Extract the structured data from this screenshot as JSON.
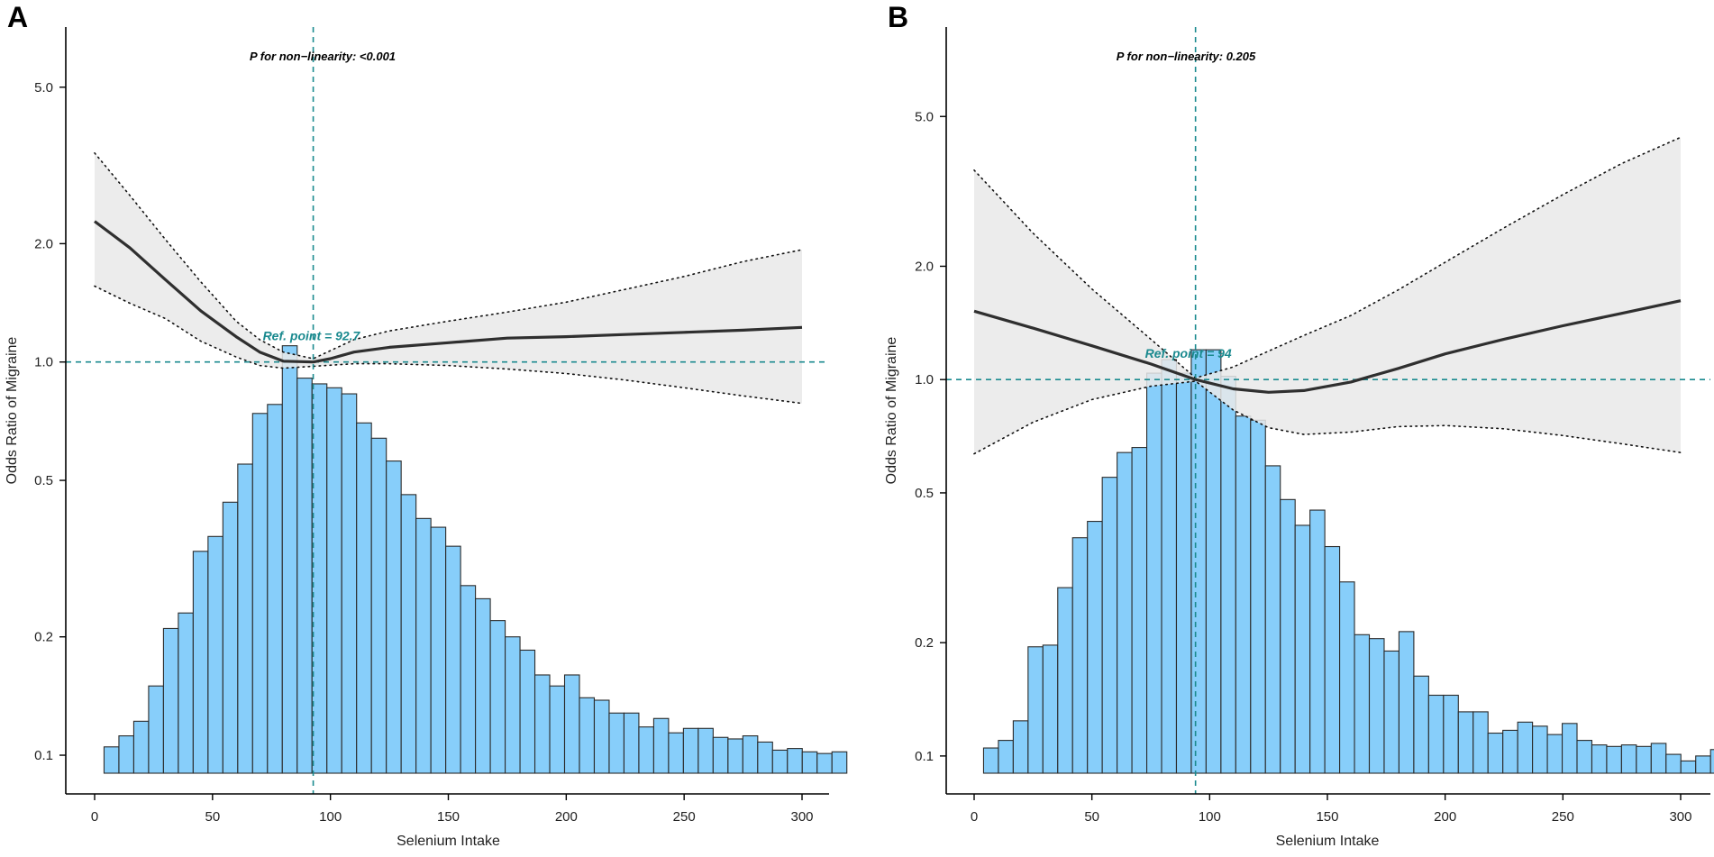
{
  "figure": {
    "panel_labels": [
      "A",
      "B"
    ]
  },
  "chart_data": [
    {
      "panel": "A",
      "type": "line",
      "overlay_type": "bar",
      "title": "",
      "xlabel": "Selenium Intake",
      "ylabel": "Odds Ratio of Migraine",
      "xlim": [
        0,
        300
      ],
      "xticks": [
        0,
        50,
        100,
        150,
        200,
        250,
        300
      ],
      "ylim_log": [
        0.09,
        7.0
      ],
      "yticks": [
        0.1,
        0.2,
        0.5,
        1.0,
        2.0,
        5.0
      ],
      "ytick_labels": [
        "0.1",
        "0.2",
        "0.5",
        "1.0",
        "2.0",
        "5.0"
      ],
      "y_scale": "log",
      "pnl_annotation": "P for non−linearity: <0.001",
      "ref_point": 92.7,
      "ref_label": "Ref. point = 92.7",
      "ref_line_y": 1.0,
      "accent_color": "#1b8a8f",
      "bar_color": "#87CEFA",
      "histogram": {
        "bin_edges_start": 4,
        "bin_width": 6.3,
        "heights": [
          0.105,
          0.112,
          0.122,
          0.15,
          0.21,
          0.23,
          0.33,
          0.36,
          0.44,
          0.55,
          0.74,
          0.78,
          1.1,
          0.91,
          0.88,
          0.86,
          0.83,
          0.7,
          0.64,
          0.56,
          0.46,
          0.4,
          0.38,
          0.34,
          0.27,
          0.25,
          0.22,
          0.2,
          0.185,
          0.16,
          0.15,
          0.16,
          0.14,
          0.138,
          0.128,
          0.128,
          0.118,
          0.124,
          0.114,
          0.117,
          0.117,
          0.111,
          0.11,
          0.112,
          0.108,
          0.103,
          0.104,
          0.102,
          0.101,
          0.102
        ]
      },
      "curve": {
        "x": [
          0,
          15,
          30,
          45,
          60,
          70,
          80,
          92.7,
          100,
          110,
          125,
          150,
          175,
          200,
          225,
          250,
          275,
          300
        ],
        "or": [
          2.28,
          1.95,
          1.62,
          1.35,
          1.16,
          1.06,
          1.005,
          1.0,
          1.02,
          1.06,
          1.09,
          1.12,
          1.15,
          1.16,
          1.175,
          1.19,
          1.205,
          1.225
        ]
      },
      "ci_upper": {
        "x": [
          0,
          15,
          30,
          45,
          60,
          70,
          80,
          92.7,
          110,
          125,
          150,
          175,
          200,
          225,
          250,
          275,
          300
        ],
        "or": [
          3.4,
          2.65,
          2.05,
          1.6,
          1.27,
          1.14,
          1.06,
          1.02,
          1.14,
          1.2,
          1.27,
          1.34,
          1.42,
          1.53,
          1.65,
          1.8,
          1.93
        ]
      },
      "ci_lower": {
        "x": [
          0,
          15,
          30,
          45,
          60,
          70,
          80,
          92.7,
          110,
          125,
          150,
          175,
          200,
          225,
          250,
          275,
          300
        ],
        "or": [
          1.56,
          1.41,
          1.29,
          1.13,
          1.03,
          0.98,
          0.965,
          0.975,
          0.99,
          0.99,
          0.98,
          0.96,
          0.935,
          0.9,
          0.86,
          0.82,
          0.785
        ]
      }
    },
    {
      "panel": "B",
      "type": "line",
      "overlay_type": "bar",
      "title": "",
      "xlabel": "Selenium Intake",
      "ylabel": "Odds Ratio of Migraine",
      "xlim": [
        0,
        300
      ],
      "xticks": [
        0,
        50,
        100,
        150,
        200,
        250,
        300
      ],
      "ylim_log": [
        0.09,
        8.5
      ],
      "yticks": [
        0.1,
        0.2,
        0.5,
        1.0,
        2.0,
        5.0
      ],
      "ytick_labels": [
        "0.1",
        "0.2",
        "0.5",
        "1.0",
        "2.0",
        "5.0"
      ],
      "y_scale": "log",
      "pnl_annotation": "P for non−linearity: 0.205",
      "ref_point": 94,
      "ref_label": "Ref. point = 94",
      "ref_line_y": 1.0,
      "accent_color": "#1b8a8f",
      "bar_color": "#87CEFA",
      "histogram": {
        "bin_edges_start": 4,
        "bin_width": 6.3,
        "heights": [
          0.105,
          0.11,
          0.124,
          0.195,
          0.197,
          0.28,
          0.38,
          0.42,
          0.55,
          0.64,
          0.66,
          1.04,
          1.13,
          1.04,
          1.2,
          1.2,
          1.02,
          0.8,
          0.78,
          0.59,
          0.48,
          0.41,
          0.45,
          0.36,
          0.29,
          0.21,
          0.205,
          0.19,
          0.214,
          0.163,
          0.145,
          0.145,
          0.131,
          0.131,
          0.115,
          0.117,
          0.123,
          0.12,
          0.114,
          0.122,
          0.11,
          0.107,
          0.106,
          0.107,
          0.106,
          0.108,
          0.101,
          0.097,
          0.1,
          0.104
        ]
      },
      "curve": {
        "x": [
          0,
          25,
          50,
          75,
          94,
          110,
          125,
          140,
          160,
          180,
          200,
          225,
          250,
          275,
          300
        ],
        "or": [
          1.52,
          1.37,
          1.23,
          1.1,
          1.0,
          0.945,
          0.925,
          0.935,
          0.985,
          1.07,
          1.17,
          1.28,
          1.39,
          1.5,
          1.62
        ]
      },
      "ci_upper": {
        "x": [
          0,
          25,
          50,
          75,
          94,
          110,
          125,
          140,
          160,
          180,
          200,
          225,
          250,
          275,
          300
        ],
        "or": [
          3.6,
          2.45,
          1.74,
          1.28,
          1.01,
          1.08,
          1.19,
          1.31,
          1.48,
          1.73,
          2.05,
          2.53,
          3.1,
          3.75,
          4.4
        ]
      },
      "ci_lower": {
        "x": [
          0,
          25,
          50,
          75,
          94,
          110,
          125,
          140,
          160,
          180,
          200,
          225,
          250,
          275,
          300
        ],
        "or": [
          0.635,
          0.77,
          0.885,
          0.96,
          0.99,
          0.83,
          0.745,
          0.715,
          0.725,
          0.75,
          0.755,
          0.74,
          0.71,
          0.675,
          0.64
        ]
      }
    }
  ]
}
